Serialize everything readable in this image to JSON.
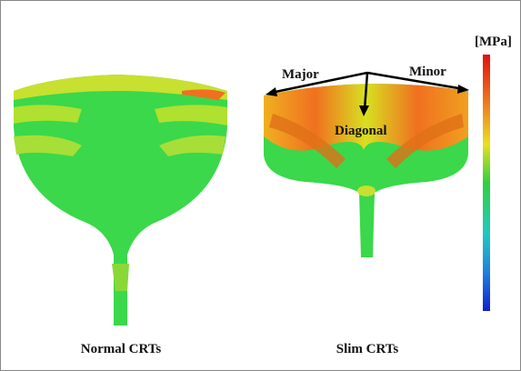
{
  "legend": {
    "unit": "[MPa]"
  },
  "annotations": {
    "major": "Major",
    "minor": "Minor",
    "diagonal": "Diagonal"
  },
  "captions": {
    "normal": "Normal CRTs",
    "slim": "Slim CRTs"
  }
}
